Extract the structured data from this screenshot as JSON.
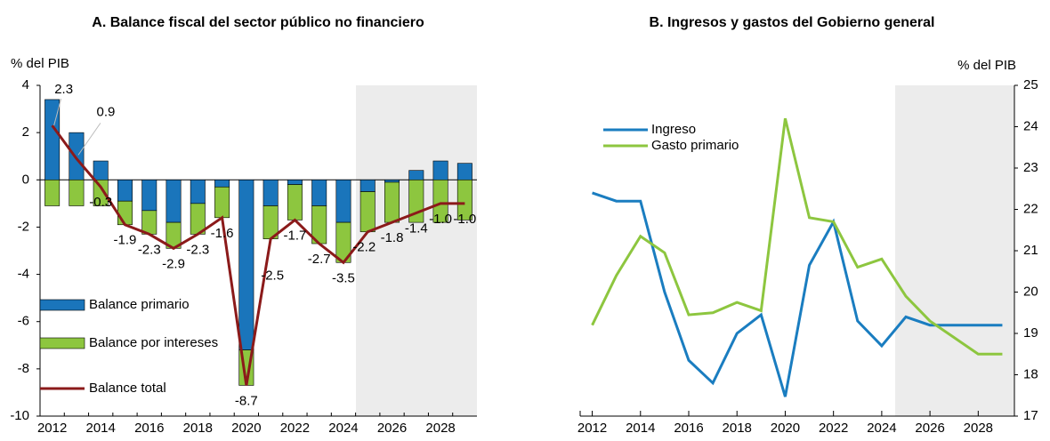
{
  "chart_data": [
    {
      "type": "bar",
      "title": "A. Balance fiscal del sector público no financiero",
      "ylabel": "% del PIB",
      "categories": [
        "2012",
        null,
        "2014",
        null,
        "2016",
        null,
        "2018",
        null,
        "2020",
        null,
        "2022",
        null,
        "2024",
        null,
        "2026",
        null,
        "2028",
        null
      ],
      "ylim": [
        -10,
        4
      ],
      "yticks": [
        -10,
        -8,
        -6,
        -4,
        -2,
        0,
        2,
        4
      ],
      "series": [
        {
          "name": "Balance primario",
          "type": "bar",
          "color": "#1a75bb",
          "values": [
            3.4,
            2.0,
            0.8,
            -0.9,
            -1.3,
            -1.8,
            -1.0,
            -0.3,
            -7.2,
            -1.1,
            -0.2,
            -1.1,
            -1.8,
            -0.5,
            -0.1,
            0.4,
            0.8,
            0.7
          ]
        },
        {
          "name": "Balance por intereses",
          "type": "bar",
          "color": "#8dc63f",
          "values": [
            -1.1,
            -1.1,
            -1.1,
            -1.0,
            -1.0,
            -1.1,
            -1.3,
            -1.3,
            -1.5,
            -1.4,
            -1.5,
            -1.6,
            -1.7,
            -1.7,
            -1.7,
            -1.8,
            -1.8,
            -1.7
          ]
        },
        {
          "name": "Balance total",
          "type": "line",
          "color": "#8b1a1a",
          "values": [
            2.3,
            0.9,
            -0.3,
            -1.9,
            -2.3,
            -2.9,
            -2.3,
            -1.6,
            -8.7,
            -2.5,
            -1.7,
            -2.7,
            -3.5,
            -2.2,
            -1.8,
            -1.4,
            -1.0,
            -1.0
          ],
          "value_labels": [
            "2.3",
            "0.9",
            "-0.3",
            "-1.9",
            "-2.3",
            "-2.9",
            "-2.3",
            "-1.6",
            "-8.7",
            "-2.5",
            "-1.7",
            "-2.7",
            "-3.5",
            "-2.2",
            "-1.8",
            "-1.4",
            "-1.0",
            "-1.0"
          ]
        }
      ]
    },
    {
      "type": "line",
      "title": "B. Ingresos y gastos del Gobierno general",
      "ylabel": "% del PIB",
      "x": [
        2012,
        2013,
        2014,
        2015,
        2016,
        2017,
        2018,
        2019,
        2020,
        2021,
        2022,
        2023,
        2024,
        2025,
        2026,
        2027,
        2028,
        2029
      ],
      "xlim": [
        2011.5,
        2029.5
      ],
      "xticks": [
        2012,
        2014,
        2016,
        2018,
        2020,
        2022,
        2024,
        2026,
        2028
      ],
      "ylim": [
        17,
        25
      ],
      "yticks": [
        17,
        18,
        19,
        20,
        21,
        22,
        23,
        24,
        25
      ],
      "series": [
        {
          "name": "Ingreso",
          "color": "#1a7dc0",
          "values": [
            22.4,
            22.2,
            22.2,
            20.0,
            18.35,
            17.8,
            19.0,
            19.45,
            17.47,
            20.65,
            21.7,
            19.3,
            18.7,
            19.4,
            19.2,
            19.2,
            19.2,
            19.2
          ]
        },
        {
          "name": "Gasto primario",
          "color": "#8dc63f",
          "values": [
            19.2,
            20.4,
            21.35,
            20.95,
            19.45,
            19.5,
            19.75,
            19.55,
            24.2,
            21.8,
            21.7,
            20.6,
            20.8,
            19.9,
            19.3,
            18.9,
            18.5,
            18.5
          ]
        }
      ]
    }
  ]
}
